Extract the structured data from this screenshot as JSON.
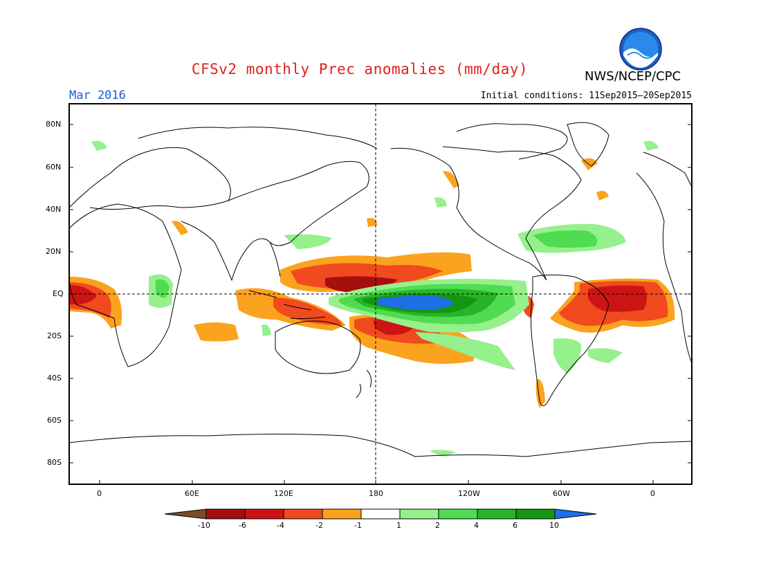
{
  "header": {
    "title": "CFSv2 monthly Prec anomalies (mm/day)",
    "organization": "NWS/NCEP/CPC",
    "valid_month": "Mar 2016",
    "initial_conditions": "Initial conditions: 11Sep2015–20Sep2015"
  },
  "map": {
    "projection": "cylindrical equidistant",
    "center_longitude": 180,
    "lat_labels": [
      "80N",
      "60N",
      "40N",
      "20N",
      "EQ",
      "20S",
      "40S",
      "60S",
      "80S"
    ],
    "lon_labels": [
      "0",
      "60E",
      "120E",
      "180",
      "120W",
      "60W",
      "0"
    ],
    "reference_lines": [
      "Equator (dashed)",
      "180 meridian (dashed)"
    ]
  },
  "colorbar": {
    "ticks": [
      "-10",
      "-6",
      "-4",
      "-2",
      "-1",
      "1",
      "2",
      "4",
      "6",
      "10"
    ],
    "colors": {
      "below_min": "#7b4a2a",
      "bins": [
        "#a50f0f",
        "#cc1414",
        "#f04a1e",
        "#fba21e",
        "#ffffff",
        "#96f08c",
        "#50dc50",
        "#28b428",
        "#149614"
      ],
      "above_max": "#1e6ee6"
    }
  },
  "anomalies": [
    {
      "region": "Western Pacific north of equator",
      "category": "-6 to -10"
    },
    {
      "region": "Southwest Pacific (SPCZ region)",
      "category": "-4 to -6"
    },
    {
      "region": "Equatorial central/eastern Pacific",
      "category": "> 10"
    },
    {
      "region": "Northeast Brazil / Equatorial Atlantic",
      "category": "-4 to -6"
    },
    {
      "region": "Equatorial West Africa",
      "category": "-2 to -6"
    },
    {
      "region": "Maritime Continent",
      "category": "-2 to -6"
    },
    {
      "region": "Gulf of Mexico / Florida",
      "category": "1 to 2"
    },
    {
      "region": "Southern Brazil / Uruguay",
      "category": "1 to 2"
    },
    {
      "region": "East Africa",
      "category": "1 to 4"
    }
  ]
}
